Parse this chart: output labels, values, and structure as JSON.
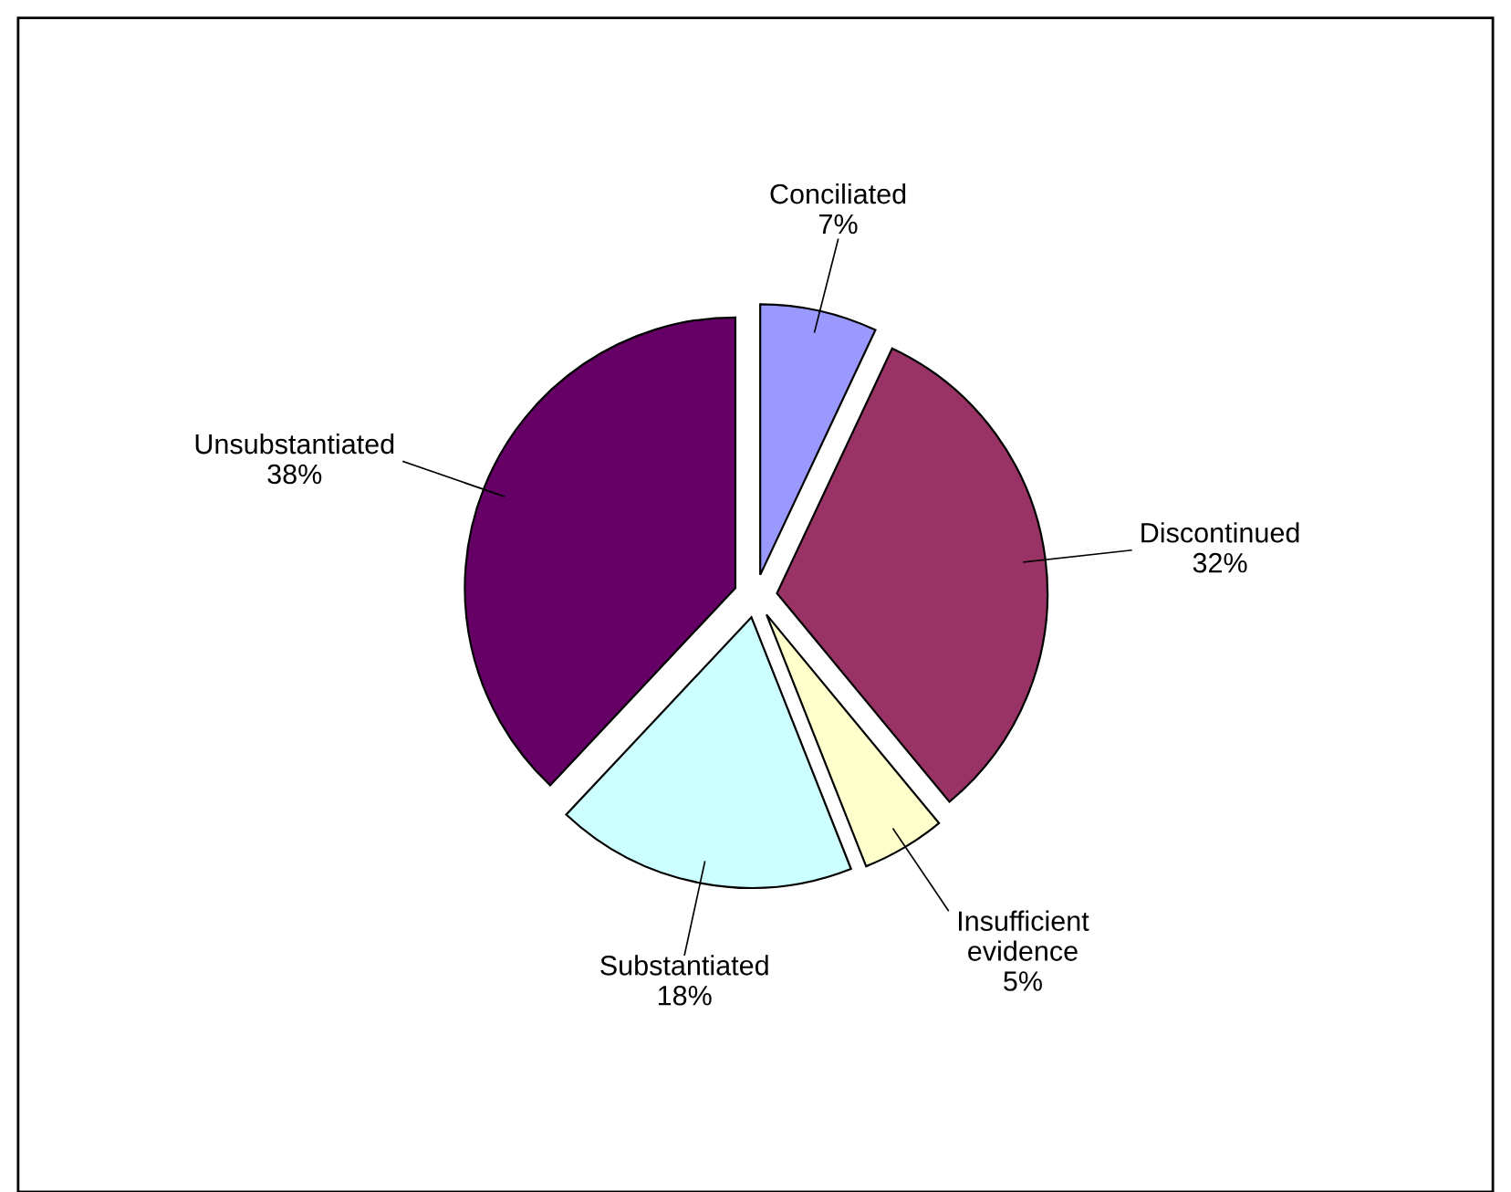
{
  "chart_data": {
    "type": "pie",
    "categories": [
      "Conciliated",
      "Discontinued",
      "Insufficient evidence",
      "Substantiated",
      "Unsubstantiated"
    ],
    "values": [
      7,
      32,
      5,
      18,
      38
    ],
    "value_labels": [
      "7%",
      "32%",
      "5%",
      "18%",
      "38%"
    ],
    "colors": [
      "#9999ff",
      "#993366",
      "#ffffcc",
      "#ccffff",
      "#660066"
    ],
    "legend": false
  }
}
